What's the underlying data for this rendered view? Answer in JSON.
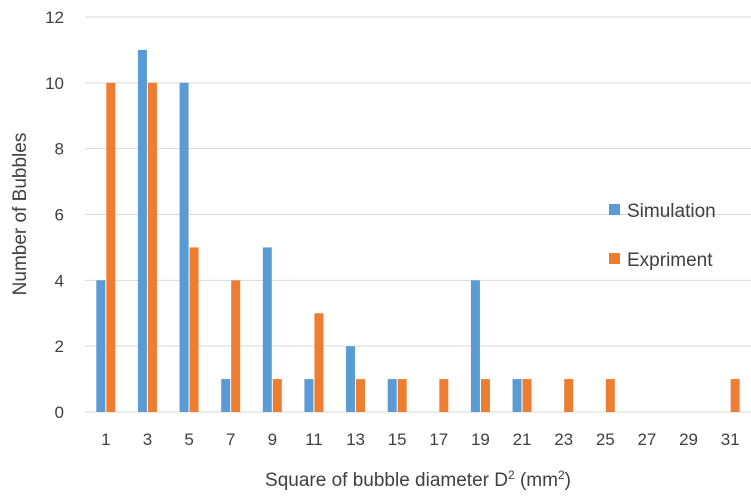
{
  "chart_data": {
    "type": "bar",
    "title": "",
    "xlabel": "Square of bubble diameter D",
    "xlabel_sup": "2",
    "xlabel_unit_open": " (mm",
    "xlabel_unit_sup": "2",
    "xlabel_unit_close": ")",
    "ylabel": "Number of Bubbles",
    "ylim": [
      0,
      12
    ],
    "yticks": [
      "0",
      "2",
      "4",
      "6",
      "8",
      "10",
      "12"
    ],
    "grid": true,
    "legend_position": "right",
    "categories": [
      "1",
      "3",
      "5",
      "7",
      "9",
      "11",
      "13",
      "15",
      "17",
      "19",
      "21",
      "23",
      "25",
      "27",
      "29",
      "31"
    ],
    "series": [
      {
        "name": "Simulation",
        "color": "#5B9BD5",
        "values": [
          4,
          11,
          10,
          1,
          5,
          1,
          2,
          1,
          0,
          4,
          1,
          0,
          0,
          0,
          0,
          0
        ]
      },
      {
        "name": "Expriment",
        "color": "#ED7D31",
        "values": [
          10,
          10,
          5,
          4,
          1,
          3,
          1,
          1,
          1,
          1,
          1,
          1,
          1,
          0,
          0,
          1
        ]
      }
    ]
  }
}
